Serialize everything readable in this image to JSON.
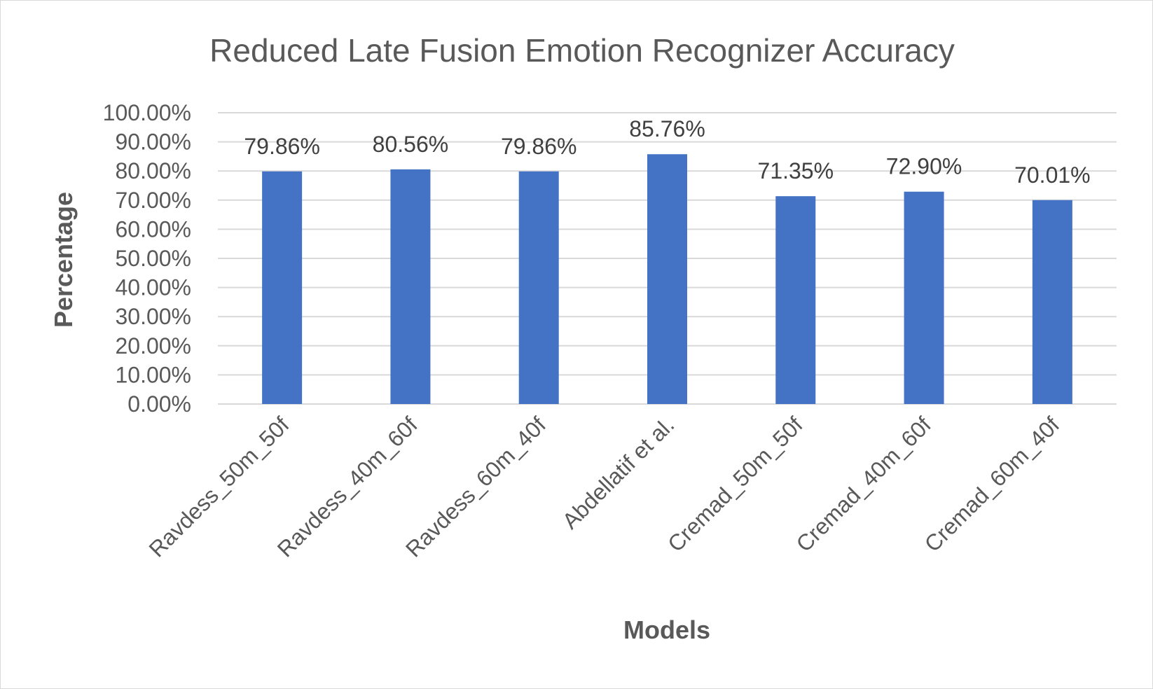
{
  "chart_data": {
    "type": "bar",
    "title": "Reduced Late Fusion Emotion Recognizer Accuracy",
    "xlabel": "Models",
    "ylabel": "Percentage",
    "categories": [
      "Ravdess_50m_50f",
      "Ravdess_40m_60f",
      "Ravdess_60m_40f",
      "Abdellatif et al.",
      "Cremad_50m_50f",
      "Cremad_40m_60f",
      "Cremad_60m_40f"
    ],
    "values": [
      79.86,
      80.56,
      79.86,
      85.76,
      71.35,
      72.9,
      70.01
    ],
    "data_labels": [
      "79.86%",
      "80.56%",
      "79.86%",
      "85.76%",
      "71.35%",
      "72.90%",
      "70.01%"
    ],
    "ylim": [
      0,
      100
    ],
    "yticks": [
      0,
      10,
      20,
      30,
      40,
      50,
      60,
      70,
      80,
      90,
      100
    ],
    "ytick_labels": [
      "0.00%",
      "10.00%",
      "20.00%",
      "30.00%",
      "40.00%",
      "50.00%",
      "60.00%",
      "70.00%",
      "80.00%",
      "90.00%",
      "100.00%"
    ],
    "grid": true,
    "legend": "none",
    "bar_color": "#4472c4"
  }
}
